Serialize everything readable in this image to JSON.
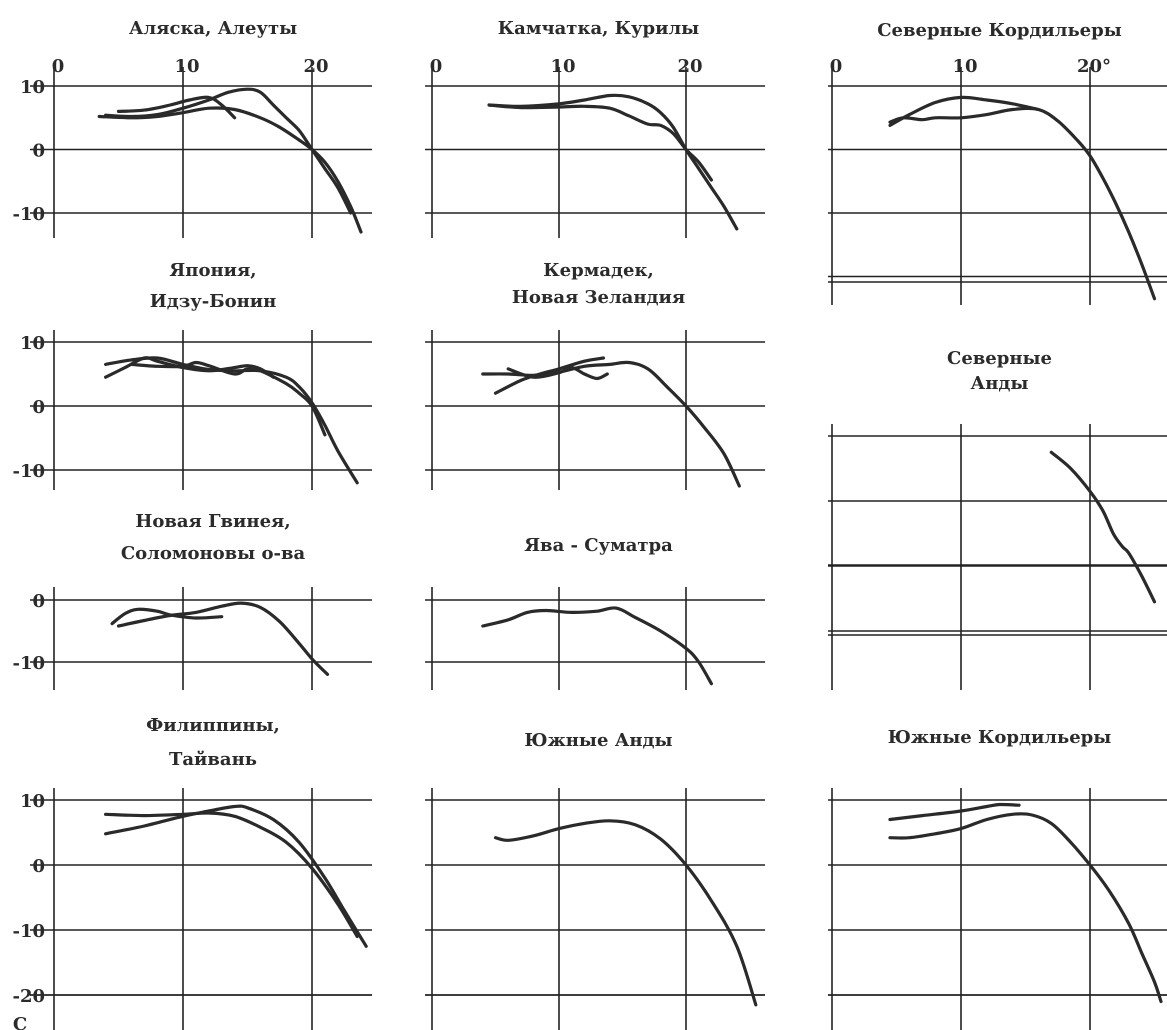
{
  "figure": {
    "bottom_left_mark": "С"
  },
  "chart_data": [
    {
      "id": "alaska",
      "type": "line",
      "title_lines": [
        "Аляска, Алеуты"
      ],
      "top_ticks": [
        "0",
        "10",
        "20"
      ],
      "y_ticks": [
        "10",
        "0",
        "-10"
      ],
      "ylim": [
        -14,
        11
      ],
      "series": [
        {
          "points": [
            [
              3.5,
              5.2
            ],
            [
              6,
              5
            ],
            [
              8,
              5.2
            ],
            [
              10,
              5.8
            ],
            [
              12,
              6.5
            ],
            [
              14,
              6.3
            ],
            [
              16,
              5
            ],
            [
              17.5,
              3.5
            ],
            [
              19,
              1.5
            ],
            [
              20,
              0
            ],
            [
              21,
              -2
            ],
            [
              22,
              -5
            ],
            [
              23,
              -9
            ],
            [
              23.8,
              -13
            ]
          ]
        },
        {
          "points": [
            [
              5,
              6
            ],
            [
              7,
              6.2
            ],
            [
              9,
              7
            ],
            [
              10.5,
              7.8
            ],
            [
              12,
              8.2
            ],
            [
              13,
              7
            ],
            [
              14,
              5
            ]
          ]
        },
        {
          "points": [
            [
              4,
              5.4
            ],
            [
              6,
              5.2
            ],
            [
              8,
              5.5
            ],
            [
              10,
              6.5
            ],
            [
              12,
              7.8
            ],
            [
              13.5,
              9
            ],
            [
              15,
              9.5
            ],
            [
              16,
              9
            ],
            [
              17,
              7
            ],
            [
              18,
              5
            ],
            [
              19,
              3
            ],
            [
              20,
              0
            ],
            [
              21,
              -3
            ],
            [
              22,
              -6
            ],
            [
              23,
              -10
            ]
          ]
        }
      ]
    },
    {
      "id": "kamchatka",
      "type": "line",
      "title_lines": [
        "Камчатка, Курилы"
      ],
      "top_ticks": [
        "0",
        "10",
        "20"
      ],
      "y_ticks": [],
      "ylim": [
        -14,
        11
      ],
      "series": [
        {
          "points": [
            [
              4.5,
              7
            ],
            [
              7,
              6.8
            ],
            [
              10,
              7.2
            ],
            [
              12,
              7.8
            ],
            [
              14,
              8.5
            ],
            [
              15.5,
              8.3
            ],
            [
              17,
              7.2
            ],
            [
              18,
              5.8
            ],
            [
              19,
              3.5
            ],
            [
              20,
              0
            ],
            [
              21,
              -3
            ],
            [
              22,
              -6
            ],
            [
              23,
              -9
            ],
            [
              24,
              -12.5
            ]
          ]
        },
        {
          "points": [
            [
              4.5,
              7
            ],
            [
              7,
              6.6
            ],
            [
              10,
              6.7
            ],
            [
              12,
              6.8
            ],
            [
              14,
              6.5
            ],
            [
              15.5,
              5.3
            ],
            [
              17,
              4
            ],
            [
              18,
              3.8
            ],
            [
              19,
              2.5
            ],
            [
              20,
              0
            ],
            [
              21,
              -2
            ],
            [
              22,
              -4.8
            ]
          ]
        }
      ]
    },
    {
      "id": "north_cordillera",
      "type": "line",
      "title_lines": [
        "Северные Кордильеры"
      ],
      "top_ticks": [
        "0",
        "10",
        "20°"
      ],
      "y_ticks": [],
      "ylim": [
        -25,
        10
      ],
      "series": [
        {
          "points": [
            [
              4.5,
              4.3
            ],
            [
              5.5,
              5
            ],
            [
              7,
              4.7
            ],
            [
              8,
              5
            ],
            [
              10,
              5
            ],
            [
              12,
              5.5
            ],
            [
              14,
              6.3
            ],
            [
              16,
              6.3
            ],
            [
              17.5,
              4.5
            ],
            [
              19,
              1.5
            ],
            [
              20,
              -1
            ],
            [
              21,
              -4.5
            ],
            [
              22,
              -8.5
            ],
            [
              23,
              -13
            ],
            [
              24,
              -18
            ],
            [
              25,
              -23.5
            ]
          ]
        },
        {
          "points": [
            [
              4.5,
              3.8
            ],
            [
              6,
              5.5
            ],
            [
              8,
              7.4
            ],
            [
              10,
              8.2
            ],
            [
              12,
              7.8
            ],
            [
              14,
              7.2
            ],
            [
              16,
              6.3
            ]
          ]
        }
      ]
    },
    {
      "id": "japan",
      "type": "line",
      "title_lines": [
        "Япония,",
        "Идзу-Бонин"
      ],
      "top_ticks": [],
      "y_ticks": [
        "10",
        "0",
        "-10"
      ],
      "ylim": [
        -13,
        10
      ],
      "series": [
        {
          "points": [
            [
              4,
              6.5
            ],
            [
              6,
              7.2
            ],
            [
              8,
              7.5
            ],
            [
              10,
              6.5
            ],
            [
              12,
              5.7
            ],
            [
              14,
              5.5
            ],
            [
              16,
              5.5
            ],
            [
              18,
              4.5
            ],
            [
              19,
              3
            ],
            [
              20,
              0.5
            ],
            [
              21,
              -3
            ],
            [
              22,
              -7
            ],
            [
              23.5,
              -12
            ]
          ]
        },
        {
          "points": [
            [
              4,
              4.5
            ],
            [
              5.5,
              6
            ],
            [
              7,
              7.5
            ],
            [
              8,
              7
            ],
            [
              10,
              6
            ],
            [
              12,
              5.5
            ],
            [
              14,
              6
            ],
            [
              15,
              6.3
            ],
            [
              16,
              5.8
            ],
            [
              17,
              4.5
            ]
          ]
        },
        {
          "points": [
            [
              6,
              6.5
            ],
            [
              8,
              6.2
            ],
            [
              10,
              6.2
            ],
            [
              11,
              6.8
            ],
            [
              12,
              6.3
            ],
            [
              14,
              5
            ],
            [
              15,
              5.8
            ],
            [
              16,
              5.5
            ],
            [
              18,
              3.5
            ],
            [
              19,
              2
            ],
            [
              20,
              0
            ],
            [
              21,
              -4.5
            ]
          ]
        }
      ]
    },
    {
      "id": "kermadec",
      "type": "line",
      "title_lines": [
        "Кермадек,",
        "Новая Зеландия"
      ],
      "top_ticks": [],
      "y_ticks": [],
      "ylim": [
        -13,
        10
      ],
      "series": [
        {
          "points": [
            [
              4,
              5
            ],
            [
              6,
              5
            ],
            [
              8,
              4.8
            ],
            [
              10,
              5.3
            ],
            [
              12,
              6.2
            ],
            [
              14,
              6.5
            ],
            [
              15.5,
              6.8
            ],
            [
              17,
              5.8
            ],
            [
              18.5,
              3
            ],
            [
              20,
              0
            ],
            [
              21.5,
              -3.5
            ],
            [
              23,
              -7.5
            ],
            [
              24.2,
              -12.5
            ]
          ]
        },
        {
          "points": [
            [
              5,
              2
            ],
            [
              7,
              4
            ],
            [
              8.5,
              5
            ],
            [
              10,
              5.8
            ],
            [
              12,
              7
            ],
            [
              13.5,
              7.5
            ]
          ]
        },
        {
          "points": [
            [
              6,
              5.8
            ],
            [
              8,
              4.5
            ],
            [
              10,
              5.2
            ],
            [
              11,
              6
            ],
            [
              12,
              5
            ],
            [
              13,
              4.3
            ],
            [
              13.8,
              5
            ]
          ]
        }
      ]
    },
    {
      "id": "guinea",
      "type": "line",
      "title_lines": [
        "Новая Гвинея,",
        "Соломоновы о-ва"
      ],
      "top_ticks": [],
      "y_ticks": [
        "0",
        "-10"
      ],
      "ylim": [
        -14,
        2
      ],
      "series": [
        {
          "points": [
            [
              5,
              -4.2
            ],
            [
              7,
              -3.3
            ],
            [
              9,
              -2.5
            ],
            [
              11,
              -2
            ],
            [
              13,
              -1
            ],
            [
              14.5,
              -0.5
            ],
            [
              16,
              -1.2
            ],
            [
              17.5,
              -3.5
            ],
            [
              19,
              -7
            ],
            [
              20,
              -9.5
            ],
            [
              21.2,
              -12
            ]
          ]
        },
        {
          "points": [
            [
              4.5,
              -3.8
            ],
            [
              5.5,
              -2.2
            ],
            [
              6.5,
              -1.5
            ],
            [
              8,
              -1.8
            ],
            [
              9,
              -2.4
            ],
            [
              11,
              -2.9
            ],
            [
              13,
              -2.7
            ]
          ]
        }
      ]
    },
    {
      "id": "java",
      "type": "line",
      "title_lines": [
        "Ява - Суматра"
      ],
      "top_ticks": [],
      "y_ticks": [],
      "ylim": [
        -14,
        2
      ],
      "series": [
        {
          "points": [
            [
              4,
              -4.2
            ],
            [
              6,
              -3.2
            ],
            [
              7.5,
              -2
            ],
            [
              9,
              -1.7
            ],
            [
              11,
              -2
            ],
            [
              13,
              -1.8
            ],
            [
              14.5,
              -1.3
            ],
            [
              16,
              -2.8
            ],
            [
              18,
              -5
            ],
            [
              20,
              -7.8
            ],
            [
              21,
              -10
            ],
            [
              22,
              -13.5
            ]
          ]
        }
      ]
    },
    {
      "id": "north_andes",
      "type": "line",
      "title_lines": [
        "Северные",
        "Анды"
      ],
      "top_ticks": [],
      "y_ticks": [],
      "ylim": [
        -30,
        8
      ],
      "series": [
        {
          "points": [
            [
              17,
              -2.5
            ],
            [
              18.5,
              -5
            ],
            [
              20,
              -8.5
            ],
            [
              21,
              -11.5
            ],
            [
              21.8,
              -15
            ],
            [
              22.5,
              -17
            ],
            [
              23,
              -18
            ],
            [
              24,
              -21.5
            ],
            [
              25,
              -25.5
            ]
          ]
        }
      ]
    },
    {
      "id": "philippines",
      "type": "line",
      "title_lines": [
        "Филиппины,",
        "Тайвань"
      ],
      "top_ticks": [],
      "y_ticks": [
        "10",
        "0",
        "-10",
        "-20"
      ],
      "ylim": [
        -25,
        11
      ],
      "series": [
        {
          "points": [
            [
              4,
              7.8
            ],
            [
              7,
              7.6
            ],
            [
              10,
              7.8
            ],
            [
              12,
              8
            ],
            [
              14,
              7.5
            ],
            [
              16,
              5.8
            ],
            [
              18,
              3.5
            ],
            [
              20,
              -0.5
            ],
            [
              22,
              -6
            ],
            [
              23.5,
              -11
            ]
          ]
        },
        {
          "points": [
            [
              4,
              4.8
            ],
            [
              7,
              6
            ],
            [
              10,
              7.5
            ],
            [
              12,
              8.3
            ],
            [
              14,
              9
            ],
            [
              15,
              8.8
            ],
            [
              17,
              7
            ],
            [
              19,
              3.5
            ],
            [
              21,
              -2
            ],
            [
              22.5,
              -7
            ],
            [
              24.2,
              -12.5
            ]
          ]
        }
      ]
    },
    {
      "id": "south_andes",
      "type": "line",
      "title_lines": [
        "Южные Анды"
      ],
      "top_ticks": [],
      "y_ticks": [],
      "ylim": [
        -25,
        11
      ],
      "series": [
        {
          "points": [
            [
              5,
              4.2
            ],
            [
              6,
              3.8
            ],
            [
              8,
              4.5
            ],
            [
              10,
              5.6
            ],
            [
              12,
              6.4
            ],
            [
              14,
              6.8
            ],
            [
              16,
              6.2
            ],
            [
              18,
              4
            ],
            [
              20,
              0
            ],
            [
              22,
              -5.5
            ],
            [
              24,
              -12.5
            ],
            [
              25.5,
              -21.5
            ]
          ]
        }
      ]
    },
    {
      "id": "south_cordillera",
      "type": "line",
      "title_lines": [
        "Южные Кордильеры"
      ],
      "top_ticks": [],
      "y_ticks": [],
      "ylim": [
        -25,
        11
      ],
      "series": [
        {
          "points": [
            [
              4.5,
              4.2
            ],
            [
              6,
              4.2
            ],
            [
              8,
              4.8
            ],
            [
              10,
              5.6
            ],
            [
              12,
              7
            ],
            [
              14,
              7.8
            ],
            [
              15.5,
              7.7
            ],
            [
              17,
              6.4
            ],
            [
              18.5,
              3.5
            ],
            [
              20,
              0
            ],
            [
              21.5,
              -4
            ],
            [
              23,
              -9
            ],
            [
              24,
              -13.5
            ],
            [
              25,
              -18
            ],
            [
              25.5,
              -21
            ]
          ]
        },
        {
          "points": [
            [
              4.5,
              7
            ],
            [
              7,
              7.6
            ],
            [
              10,
              8.3
            ],
            [
              12,
              9
            ],
            [
              13,
              9.3
            ],
            [
              14.5,
              9.2
            ]
          ]
        }
      ]
    }
  ]
}
